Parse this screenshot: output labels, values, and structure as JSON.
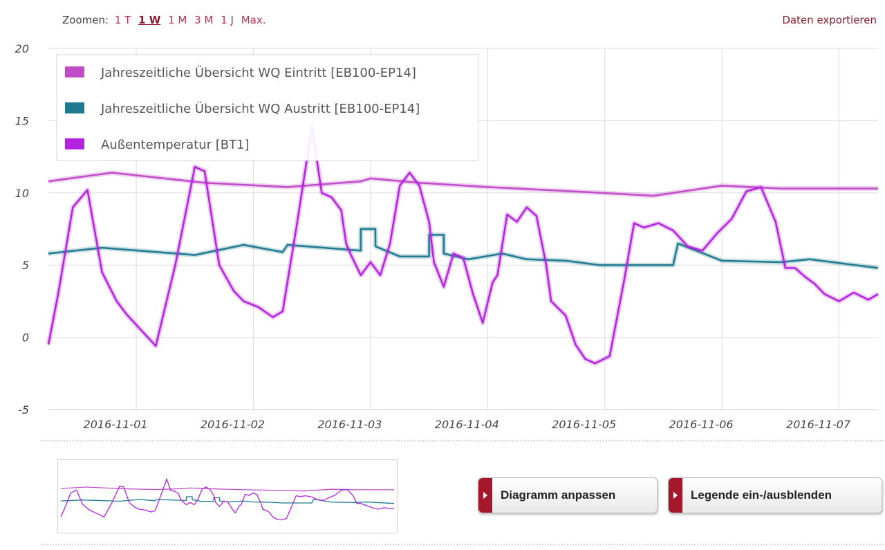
{
  "zoom": {
    "label": "Zoomen:",
    "options": [
      {
        "label": "1 T",
        "active": false
      },
      {
        "label": "1 W",
        "active": true
      },
      {
        "label": "1 M",
        "active": false
      },
      {
        "label": "3 M",
        "active": false
      },
      {
        "label": "1 J",
        "active": false
      },
      {
        "label": "Max.",
        "active": false
      }
    ]
  },
  "export_label": "Daten exportieren",
  "buttons": {
    "adjust_label": "Diagramm anpassen",
    "legend_toggle_label": "Legende ein-/ausblenden"
  },
  "colors": {
    "accent": "#a4182b",
    "link": "#8a1c32",
    "grid": "#dedede"
  },
  "chart_data": {
    "type": "line",
    "title": "",
    "xlabel": "",
    "ylabel": "",
    "ylim": [
      -5,
      20
    ],
    "yticks": [
      -5,
      0,
      5,
      10,
      15,
      20
    ],
    "xlim": [
      "2016-10-31 06:00",
      "2016-11-07 08:00"
    ],
    "xticks": [
      "2016-11-01",
      "2016-11-02",
      "2016-11-03",
      "2016-11-04",
      "2016-11-05",
      "2016-11-06",
      "2016-11-07"
    ],
    "grid": true,
    "legend_position": "top-left",
    "series": [
      {
        "name": "Jahreszeitliche Übersicht WQ Eintritt [EB100-EP14]",
        "color": "#c04cc8",
        "x": [
          "2016-10-31 06:00",
          "2016-10-31 19:00",
          "2016-11-01 14:00",
          "2016-11-02 07:00",
          "2016-11-02 22:00",
          "2016-11-03 00:00",
          "2016-11-03 10:00",
          "2016-11-04 00:00",
          "2016-11-04 18:00",
          "2016-11-05 10:00",
          "2016-11-06 00:00",
          "2016-11-06 12:00",
          "2016-11-07 08:00"
        ],
        "y": [
          10.8,
          11.4,
          10.7,
          10.4,
          10.8,
          11.0,
          10.7,
          10.4,
          10.1,
          9.8,
          10.5,
          10.3,
          10.3
        ]
      },
      {
        "name": "Jahreszeitliche Übersicht WQ Austritt [EB100-EP14]",
        "color": "#1f7a90",
        "x": [
          "2016-10-31 06:00",
          "2016-10-31 17:00",
          "2016-11-01 12:00",
          "2016-11-01 22:00",
          "2016-11-02 06:00",
          "2016-11-02 07:00",
          "2016-11-02 22:00",
          "2016-11-02 22:01",
          "2016-11-03 01:00",
          "2016-11-03 01:01",
          "2016-11-03 06:00",
          "2016-11-03 12:00",
          "2016-11-03 12:01",
          "2016-11-03 15:00",
          "2016-11-03 15:01",
          "2016-11-03 20:00",
          "2016-11-04 03:00",
          "2016-11-04 08:00",
          "2016-11-04 16:00",
          "2016-11-04 23:00",
          "2016-11-05 14:00",
          "2016-11-05 15:00",
          "2016-11-06 00:00",
          "2016-11-06 12:00",
          "2016-11-06 18:00",
          "2016-11-07 08:00"
        ],
        "y": [
          5.8,
          6.2,
          5.7,
          6.4,
          5.9,
          6.4,
          6.0,
          7.5,
          7.5,
          6.3,
          5.6,
          5.6,
          7.1,
          7.1,
          5.8,
          5.4,
          5.8,
          5.4,
          5.3,
          5.0,
          5.0,
          6.5,
          5.3,
          5.2,
          5.4,
          4.8
        ]
      },
      {
        "name": "Außentemperatur [BT1]",
        "color": "#b223e0",
        "x": [
          "2016-10-31 06:00",
          "2016-10-31 08:00",
          "2016-10-31 11:00",
          "2016-10-31 14:00",
          "2016-10-31 17:00",
          "2016-10-31 20:00",
          "2016-10-31 22:00",
          "2016-11-01 01:00",
          "2016-11-01 04:00",
          "2016-11-01 08:00",
          "2016-11-01 12:00",
          "2016-11-01 14:00",
          "2016-11-01 17:00",
          "2016-11-01 20:00",
          "2016-11-01 22:00",
          "2016-11-02 01:00",
          "2016-11-02 04:00",
          "2016-11-02 06:00",
          "2016-11-02 09:00",
          "2016-11-02 12:00",
          "2016-11-02 14:00",
          "2016-11-02 16:00",
          "2016-11-02 18:00",
          "2016-11-02 19:00",
          "2016-11-02 20:00",
          "2016-11-02 22:00",
          "2016-11-03 00:00",
          "2016-11-03 02:00",
          "2016-11-03 04:00",
          "2016-11-03 06:00",
          "2016-11-03 08:00",
          "2016-11-03 10:00",
          "2016-11-03 12:00",
          "2016-11-03 13:00",
          "2016-11-03 15:00",
          "2016-11-03 17:00",
          "2016-11-03 19:00",
          "2016-11-03 21:00",
          "2016-11-03 23:00",
          "2016-11-04 01:00",
          "2016-11-04 02:00",
          "2016-11-04 04:00",
          "2016-11-04 06:00",
          "2016-11-04 08:00",
          "2016-11-04 10:00",
          "2016-11-04 12:00",
          "2016-11-04 13:00",
          "2016-11-04 16:00",
          "2016-11-04 18:00",
          "2016-11-04 20:00",
          "2016-11-04 22:00",
          "2016-11-05 01:00",
          "2016-11-05 04:00",
          "2016-11-05 06:00",
          "2016-11-05 08:00",
          "2016-11-05 11:00",
          "2016-11-05 14:00",
          "2016-11-05 17:00",
          "2016-11-05 20:00",
          "2016-11-05 23:00",
          "2016-11-06 02:00",
          "2016-11-06 05:00",
          "2016-11-06 08:00",
          "2016-11-06 11:00",
          "2016-11-06 13:00",
          "2016-11-06 15:00",
          "2016-11-06 17:00",
          "2016-11-06 19:00",
          "2016-11-06 21:00",
          "2016-11-07 00:00",
          "2016-11-07 03:00",
          "2016-11-07 06:00",
          "2016-11-07 08:00"
        ],
        "y": [
          -0.5,
          3.0,
          9.0,
          10.2,
          4.5,
          2.5,
          1.6,
          0.5,
          -0.6,
          5.0,
          11.8,
          11.5,
          5.0,
          3.2,
          2.5,
          2.1,
          1.4,
          1.8,
          8.0,
          14.6,
          10.0,
          9.7,
          8.8,
          6.5,
          5.7,
          4.3,
          5.2,
          4.3,
          6.5,
          10.5,
          11.4,
          10.5,
          8.0,
          5.2,
          3.5,
          5.8,
          5.5,
          3.0,
          1.0,
          3.8,
          4.3,
          8.5,
          8.0,
          9.0,
          8.4,
          5.0,
          2.5,
          1.5,
          -0.5,
          -1.5,
          -1.8,
          -1.3,
          4.0,
          7.9,
          7.6,
          7.9,
          7.4,
          6.3,
          6.0,
          7.2,
          8.2,
          10.1,
          10.4,
          8.0,
          4.8,
          4.8,
          4.2,
          3.7,
          3.0,
          2.5,
          3.1,
          2.6,
          3.0
        ]
      }
    ]
  }
}
